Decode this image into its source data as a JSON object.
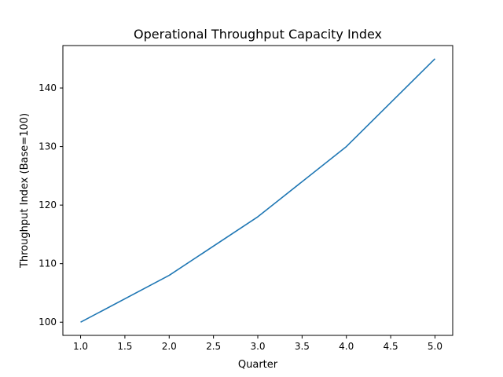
{
  "chart_data": {
    "type": "line",
    "title": "Operational Throughput Capacity Index",
    "xlabel": "Quarter",
    "ylabel": "Throughput Index (Base=100)",
    "xlim": [
      0.8,
      5.2
    ],
    "ylim": [
      97.75,
      147.25
    ],
    "xticks": [
      1.0,
      1.5,
      2.0,
      2.5,
      3.0,
      3.5,
      4.0,
      4.5,
      5.0
    ],
    "xtick_labels": [
      "1.0",
      "1.5",
      "2.0",
      "2.5",
      "3.0",
      "3.5",
      "4.0",
      "4.5",
      "5.0"
    ],
    "yticks": [
      100,
      110,
      120,
      130,
      140
    ],
    "ytick_labels": [
      "100",
      "110",
      "120",
      "130",
      "140"
    ],
    "grid": false,
    "legend": "none",
    "series": [
      {
        "color": "#1f77b4",
        "x": [
          1,
          2,
          3,
          4,
          5
        ],
        "values": [
          100,
          108,
          118,
          130,
          145
        ]
      }
    ]
  }
}
